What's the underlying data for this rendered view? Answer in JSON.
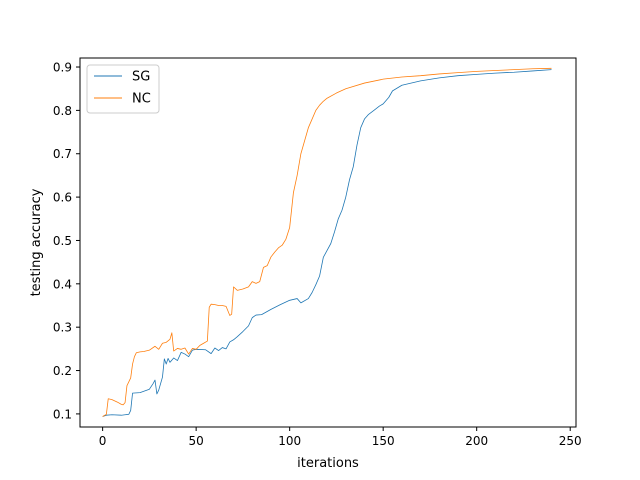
{
  "chart_data": {
    "type": "line",
    "title": "",
    "xlabel": "iterations",
    "ylabel": "testing accuracy",
    "xlim": [
      -12.1,
      253.1
    ],
    "ylim": [
      0.0698,
      0.9208
    ],
    "xticks": [
      0,
      50,
      100,
      150,
      200,
      250
    ],
    "yticks": [
      0.1,
      0.2,
      0.3,
      0.4,
      0.5,
      0.6,
      0.7,
      0.8,
      0.9
    ],
    "xtick_labels": [
      "0",
      "50",
      "100",
      "150",
      "200",
      "250"
    ],
    "ytick_labels": [
      "0.1",
      "0.2",
      "0.3",
      "0.4",
      "0.5",
      "0.6",
      "0.7",
      "0.8",
      "0.9"
    ],
    "grid": false,
    "legend": "top-left",
    "series": [
      {
        "name": "SG",
        "color": "#1f77b4",
        "x": [
          0,
          2,
          5,
          10,
          12,
          14,
          15,
          16,
          20,
          25,
          27,
          28,
          29,
          30,
          32,
          33,
          34,
          35,
          36,
          38,
          40,
          42,
          44,
          46,
          48,
          50,
          55,
          58,
          60,
          62,
          64,
          66,
          68,
          70,
          72,
          75,
          78,
          80,
          82,
          85,
          90,
          95,
          100,
          104,
          106,
          110,
          112,
          114,
          116,
          118,
          120,
          122,
          124,
          126,
          128,
          130,
          132,
          134,
          136,
          138,
          140,
          142,
          145,
          148,
          150,
          153,
          155,
          160,
          170,
          180,
          190,
          200,
          210,
          220,
          230,
          240
        ],
        "y": [
          0.094,
          0.097,
          0.098,
          0.097,
          0.098,
          0.099,
          0.108,
          0.148,
          0.149,
          0.157,
          0.17,
          0.178,
          0.146,
          0.155,
          0.185,
          0.227,
          0.215,
          0.228,
          0.219,
          0.229,
          0.223,
          0.242,
          0.238,
          0.232,
          0.247,
          0.249,
          0.248,
          0.239,
          0.252,
          0.246,
          0.253,
          0.25,
          0.266,
          0.271,
          0.278,
          0.29,
          0.303,
          0.322,
          0.328,
          0.329,
          0.341,
          0.352,
          0.362,
          0.366,
          0.356,
          0.366,
          0.38,
          0.398,
          0.418,
          0.461,
          0.477,
          0.493,
          0.52,
          0.55,
          0.57,
          0.6,
          0.64,
          0.67,
          0.72,
          0.76,
          0.78,
          0.79,
          0.8,
          0.81,
          0.815,
          0.83,
          0.845,
          0.858,
          0.868,
          0.875,
          0.88,
          0.883,
          0.886,
          0.888,
          0.891,
          0.894
        ]
      },
      {
        "name": "NC",
        "color": "#ff7f0e",
        "x": [
          0,
          2,
          3,
          5,
          8,
          10,
          11,
          12,
          13,
          15,
          16,
          17,
          18,
          20,
          22,
          25,
          28,
          30,
          32,
          34,
          36,
          37,
          38,
          40,
          42,
          44,
          46,
          48,
          50,
          52,
          54,
          56,
          57,
          58,
          60,
          62,
          64,
          66,
          68,
          69,
          70,
          72,
          75,
          78,
          80,
          82,
          84,
          86,
          88,
          90,
          92,
          94,
          96,
          98,
          100,
          102,
          104,
          106,
          108,
          110,
          112,
          114,
          116,
          118,
          120,
          125,
          130,
          140,
          150,
          160,
          170,
          180,
          190,
          200,
          210,
          220,
          230,
          240
        ],
        "y": [
          0.094,
          0.099,
          0.135,
          0.133,
          0.127,
          0.122,
          0.121,
          0.126,
          0.165,
          0.183,
          0.215,
          0.232,
          0.241,
          0.243,
          0.244,
          0.247,
          0.256,
          0.249,
          0.263,
          0.265,
          0.272,
          0.287,
          0.245,
          0.251,
          0.249,
          0.252,
          0.238,
          0.251,
          0.249,
          0.258,
          0.263,
          0.268,
          0.346,
          0.353,
          0.352,
          0.35,
          0.35,
          0.348,
          0.327,
          0.33,
          0.393,
          0.385,
          0.388,
          0.393,
          0.405,
          0.401,
          0.405,
          0.438,
          0.442,
          0.462,
          0.473,
          0.483,
          0.489,
          0.503,
          0.53,
          0.61,
          0.65,
          0.7,
          0.73,
          0.76,
          0.78,
          0.8,
          0.812,
          0.821,
          0.828,
          0.84,
          0.85,
          0.863,
          0.872,
          0.877,
          0.88,
          0.884,
          0.887,
          0.89,
          0.892,
          0.894,
          0.896,
          0.897
        ]
      }
    ]
  }
}
